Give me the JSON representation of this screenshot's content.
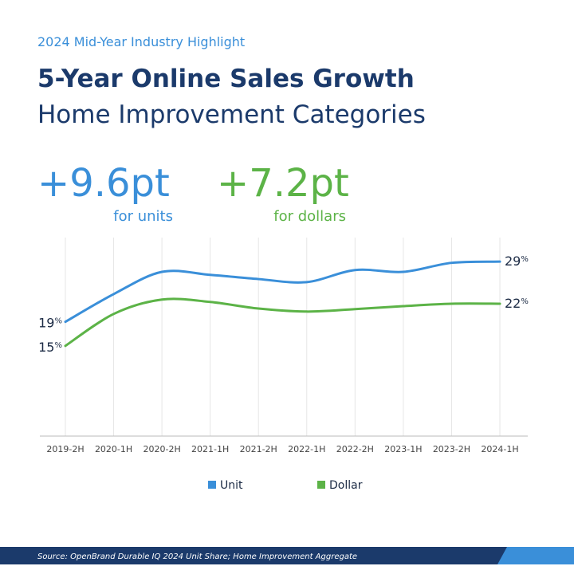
{
  "chart_data": {
    "type": "line",
    "eyebrow": "2024 Mid-Year Industry Highlight",
    "title": "5-Year Online Sales Growth",
    "subtitle": "Home Improvement Categories",
    "highlights": [
      {
        "label": "+9.6pt",
        "caption": "for units",
        "color": "#3a8fd9"
      },
      {
        "label": "+7.2pt",
        "caption": "for dollars",
        "color": "#5cb347"
      }
    ],
    "categories": [
      "2019-2H",
      "2020-1H",
      "2020-2H",
      "2021-1H",
      "2021-2H",
      "2022-1H",
      "2022-2H",
      "2023-1H",
      "2023-2H",
      "2024-1H"
    ],
    "series": [
      {
        "name": "Unit",
        "color": "#3a8fd9",
        "values": [
          19,
          23.6,
          27.3,
          26.8,
          26.1,
          25.6,
          27.6,
          27.3,
          28.8,
          29
        ],
        "value_labels": [
          "19%",
          null,
          null,
          null,
          null,
          null,
          null,
          null,
          null,
          "29%"
        ]
      },
      {
        "name": "Dollar",
        "color": "#5cb347",
        "values": [
          15,
          20.3,
          22.7,
          22.3,
          21.2,
          20.7,
          21.1,
          21.6,
          22.0,
          22
        ],
        "value_labels": [
          "15%",
          null,
          null,
          null,
          null,
          null,
          null,
          null,
          null,
          "22%"
        ]
      }
    ],
    "ylim": [
      0,
      33
    ],
    "source": "Source: OpenBrand Durable IQ 2024 Unit Share; Home Improvement Aggregate"
  }
}
